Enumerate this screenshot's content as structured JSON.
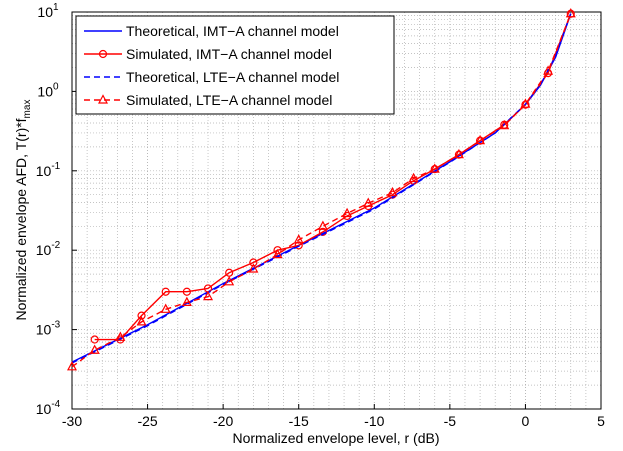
{
  "chart_data": {
    "type": "line",
    "xlabel": "Normalized envelope level, r (dB)",
    "ylabel": "Normalized envelope AFD, T(r)*f_max",
    "xlim": [
      -30,
      5
    ],
    "xticks": [
      -30,
      -25,
      -20,
      -15,
      -10,
      -5,
      0,
      5
    ],
    "ylim": [
      0.0001,
      10
    ],
    "log_y": true,
    "grid": true,
    "legend": "upper left",
    "yticks": [
      {
        "value": 0.0001,
        "label": "10^-4"
      },
      {
        "value": 0.001,
        "label": "10^-3"
      },
      {
        "value": 0.01,
        "label": "10^-2"
      },
      {
        "value": 0.1,
        "label": "10^-1"
      },
      {
        "value": 1,
        "label": "10^0"
      },
      {
        "value": 10,
        "label": "10^1"
      }
    ],
    "series": [
      {
        "name": "Theoretical, IMT−A channel model",
        "color": "#0000ff",
        "style": "solid",
        "x": [
          -30,
          -25,
          -20,
          -15,
          -10,
          -5,
          -2,
          0,
          1,
          2,
          3
        ],
        "values": [
          0.00039,
          0.00115,
          0.0038,
          0.0115,
          0.034,
          0.13,
          0.3,
          0.68,
          1.2,
          2.7,
          9.5
        ]
      },
      {
        "name": "Simulated, IMT−A channel model",
        "color": "#ff0000",
        "style": "solid",
        "marker": "circle",
        "x": [
          -28.5,
          -26.8,
          -25.4,
          -23.8,
          -22.4,
          -21.0,
          -19.6,
          -18.0,
          -16.4,
          -15.0,
          -13.4,
          -11.8,
          -10.4,
          -8.8,
          -7.4,
          -6.0,
          -4.4,
          -3.0,
          -1.4,
          0,
          1.5,
          3
        ],
        "values": [
          0.00075,
          0.00075,
          0.0015,
          0.003,
          0.003,
          0.0033,
          0.0052,
          0.007,
          0.01,
          0.0115,
          0.017,
          0.027,
          0.036,
          0.05,
          0.075,
          0.105,
          0.16,
          0.24,
          0.38,
          0.68,
          1.7,
          9.5
        ]
      },
      {
        "name": "Theoretical, LTE−A channel model",
        "color": "#0000ff",
        "style": "dashed",
        "x": [
          -30,
          -25,
          -20,
          -15,
          -10,
          -5,
          -2,
          0,
          1,
          2,
          3
        ],
        "values": [
          0.00038,
          0.00112,
          0.0037,
          0.0112,
          0.033,
          0.128,
          0.3,
          0.69,
          1.22,
          2.8,
          9.6
        ]
      },
      {
        "name": "Simulated, LTE−A channel model",
        "color": "#ff0000",
        "style": "dashed",
        "marker": "triangle",
        "x": [
          -30,
          -28.5,
          -26.8,
          -25.4,
          -23.8,
          -22.4,
          -21.0,
          -19.6,
          -18.0,
          -16.4,
          -15.0,
          -13.4,
          -11.8,
          -10.4,
          -8.8,
          -7.4,
          -6.0,
          -4.4,
          -3.0,
          -1.4,
          0,
          1.5,
          3
        ],
        "values": [
          0.00034,
          0.00055,
          0.0008,
          0.00125,
          0.0018,
          0.0022,
          0.0026,
          0.004,
          0.0058,
          0.0088,
          0.0135,
          0.02,
          0.029,
          0.039,
          0.053,
          0.08,
          0.105,
          0.16,
          0.24,
          0.37,
          0.69,
          1.8,
          9.5
        ]
      }
    ]
  }
}
